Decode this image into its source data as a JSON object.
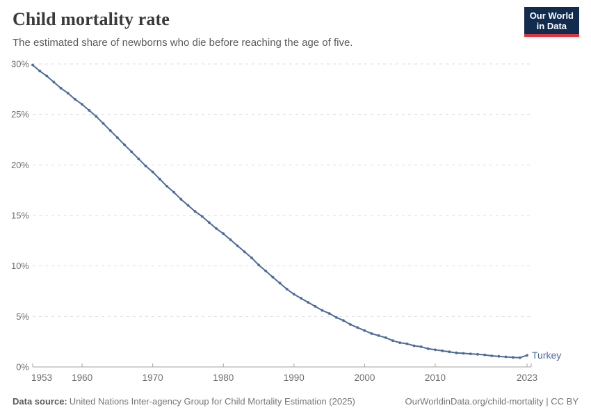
{
  "header": {
    "title": "Child mortality rate",
    "subtitle": "The estimated share of newborns who die before reaching the age of five.",
    "logo": {
      "line1": "Our World",
      "line2": "in Data"
    }
  },
  "footer": {
    "source_label": "Data source:",
    "source_text": "United Nations Inter-agency Group for Child Mortality Estimation (2025)",
    "attribution": "OurWorldinData.org/child-mortality | CC BY"
  },
  "colors": {
    "page_bg": "#ffffff",
    "line": "#4C6A9C",
    "series_label": "#4C6A9C",
    "grid": "#dddddd",
    "axis": "#a3a3a3",
    "tick_text": "#6e6e6e",
    "title_text": "#3a3a3a",
    "subtitle_text": "#5b5b5b",
    "footer_text": "#757575",
    "footer_label_text": "#5a5a5a",
    "logo_bg": "#112c4f",
    "logo_stripe": "#e0353e"
  },
  "chart_data": {
    "type": "line",
    "title": "Child mortality rate",
    "subtitle": "The estimated share of newborns who die before reaching the age of five.",
    "entity": "Turkey",
    "xlabel": "",
    "ylabel": "",
    "xlim": [
      1953,
      2023
    ],
    "ylim": [
      0,
      30
    ],
    "x_ticks": [
      1953,
      1960,
      1970,
      1980,
      1990,
      2000,
      2010,
      2023
    ],
    "y_ticks": [
      0,
      5,
      10,
      15,
      20,
      25,
      30
    ],
    "y_tick_suffix": "%",
    "grid": "horizontal-dashed",
    "legend": "end-of-line-label",
    "marker": "dot-every-year",
    "series": [
      {
        "name": "Turkey",
        "color": "#4C6A9C",
        "points": [
          [
            1953,
            29.9
          ],
          [
            1954,
            29.3
          ],
          [
            1955,
            28.8
          ],
          [
            1956,
            28.2
          ],
          [
            1957,
            27.6
          ],
          [
            1958,
            27.1
          ],
          [
            1959,
            26.5
          ],
          [
            1960,
            26.0
          ],
          [
            1961,
            25.4
          ],
          [
            1962,
            24.8
          ],
          [
            1963,
            24.1
          ],
          [
            1964,
            23.4
          ],
          [
            1965,
            22.7
          ],
          [
            1966,
            22.0
          ],
          [
            1967,
            21.3
          ],
          [
            1968,
            20.6
          ],
          [
            1969,
            19.9
          ],
          [
            1970,
            19.3
          ],
          [
            1971,
            18.6
          ],
          [
            1972,
            17.9
          ],
          [
            1973,
            17.3
          ],
          [
            1974,
            16.6
          ],
          [
            1975,
            16.0
          ],
          [
            1976,
            15.4
          ],
          [
            1977,
            14.9
          ],
          [
            1978,
            14.3
          ],
          [
            1979,
            13.7
          ],
          [
            1980,
            13.2
          ],
          [
            1981,
            12.6
          ],
          [
            1982,
            12.0
          ],
          [
            1983,
            11.4
          ],
          [
            1984,
            10.8
          ],
          [
            1985,
            10.1
          ],
          [
            1986,
            9.5
          ],
          [
            1987,
            8.9
          ],
          [
            1988,
            8.3
          ],
          [
            1989,
            7.7
          ],
          [
            1990,
            7.2
          ],
          [
            1991,
            6.8
          ],
          [
            1992,
            6.4
          ],
          [
            1993,
            6.0
          ],
          [
            1994,
            5.6
          ],
          [
            1995,
            5.3
          ],
          [
            1996,
            4.9
          ],
          [
            1997,
            4.6
          ],
          [
            1998,
            4.2
          ],
          [
            1999,
            3.9
          ],
          [
            2000,
            3.6
          ],
          [
            2001,
            3.3
          ],
          [
            2002,
            3.1
          ],
          [
            2003,
            2.9
          ],
          [
            2004,
            2.6
          ],
          [
            2005,
            2.4
          ],
          [
            2006,
            2.3
          ],
          [
            2007,
            2.1
          ],
          [
            2008,
            2.0
          ],
          [
            2009,
            1.8
          ],
          [
            2010,
            1.7
          ],
          [
            2011,
            1.6
          ],
          [
            2012,
            1.5
          ],
          [
            2013,
            1.4
          ],
          [
            2014,
            1.35
          ],
          [
            2015,
            1.3
          ],
          [
            2016,
            1.25
          ],
          [
            2017,
            1.2
          ],
          [
            2018,
            1.1
          ],
          [
            2019,
            1.05
          ],
          [
            2020,
            1.0
          ],
          [
            2021,
            0.95
          ],
          [
            2022,
            0.92
          ],
          [
            2023,
            1.15
          ]
        ]
      }
    ]
  }
}
